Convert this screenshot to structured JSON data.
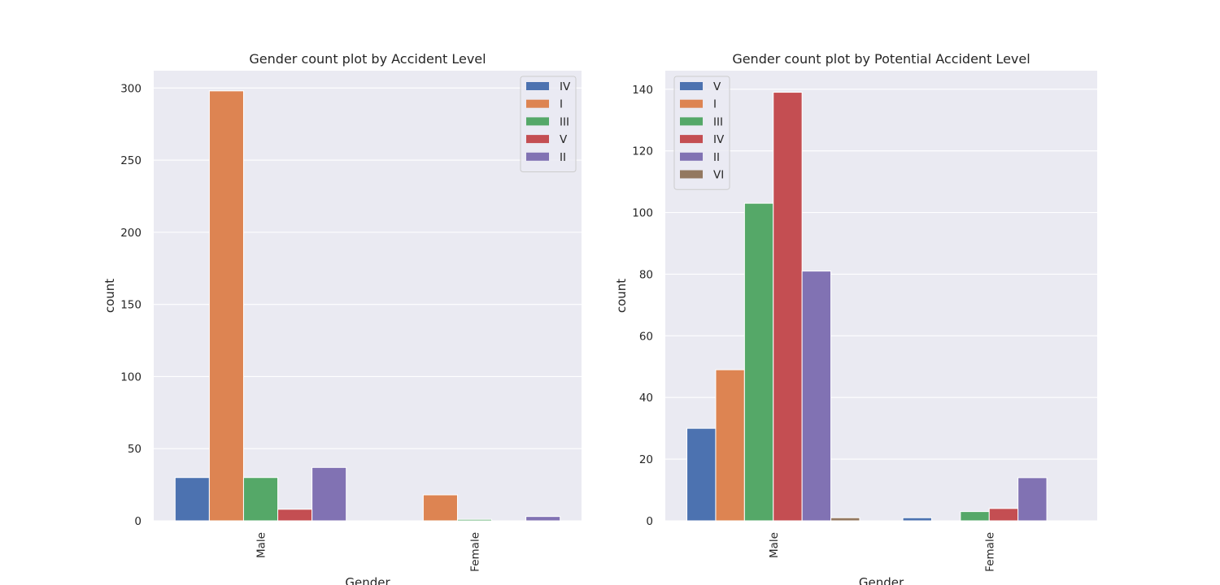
{
  "chart_data": [
    {
      "type": "bar",
      "title": "Gender count plot by Accident Level",
      "xlabel": "Gender",
      "ylabel": "count",
      "categories": [
        "Male",
        "Female"
      ],
      "ylim": [
        0,
        312
      ],
      "yticks": [
        0,
        50,
        100,
        150,
        200,
        250,
        300
      ],
      "legend_position": "top-right",
      "grid": true,
      "series": [
        {
          "name": "IV",
          "color": "#4c72b0",
          "values": [
            30,
            0
          ]
        },
        {
          "name": "I",
          "color": "#dd8452",
          "values": [
            298,
            18
          ]
        },
        {
          "name": "III",
          "color": "#55a868",
          "values": [
            30,
            1
          ]
        },
        {
          "name": "V",
          "color": "#c44e52",
          "values": [
            8,
            0
          ]
        },
        {
          "name": "II",
          "color": "#8172b3",
          "values": [
            37,
            3
          ]
        }
      ]
    },
    {
      "type": "bar",
      "title": "Gender count plot by Potential Accident Level",
      "xlabel": "Gender",
      "ylabel": "count",
      "categories": [
        "Male",
        "Female"
      ],
      "ylim": [
        0,
        146
      ],
      "yticks": [
        0,
        20,
        40,
        60,
        80,
        100,
        120,
        140
      ],
      "legend_position": "top-left",
      "grid": true,
      "series": [
        {
          "name": "V",
          "color": "#4c72b0",
          "values": [
            30,
            1
          ]
        },
        {
          "name": "I",
          "color": "#dd8452",
          "values": [
            49,
            0
          ]
        },
        {
          "name": "III",
          "color": "#55a868",
          "values": [
            103,
            3
          ]
        },
        {
          "name": "IV",
          "color": "#c44e52",
          "values": [
            139,
            4
          ]
        },
        {
          "name": "II",
          "color": "#8172b3",
          "values": [
            81,
            14
          ]
        },
        {
          "name": "VI",
          "color": "#937860",
          "values": [
            1,
            0
          ]
        }
      ]
    }
  ],
  "style": {
    "plot_background": "#eaeaf2",
    "grid_color": "#ffffff",
    "text_color": "#262626"
  }
}
